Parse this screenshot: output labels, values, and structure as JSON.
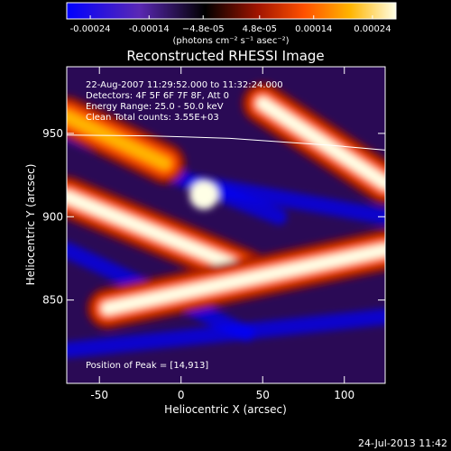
{
  "chart_data": {
    "type": "heatmap",
    "title": "Reconstructed RHESSI Image",
    "xlabel": "Heliocentric X (arcsec)",
    "ylabel": "Heliocentric Y (arcsec)",
    "xlim": [
      -70,
      125
    ],
    "ylim": [
      800,
      990
    ],
    "x_ticks": [
      -50,
      0,
      50,
      100
    ],
    "y_ticks": [
      850,
      900,
      950
    ],
    "colorbar": {
      "range": [
        -0.00028,
        0.00028
      ],
      "tick_values": [
        -0.00024,
        -0.00014,
        -4.8e-05,
        4.8e-05,
        0.00014,
        0.00024
      ],
      "tick_labels": [
        "-0.00024",
        "-0.00014",
        "−4.8e-05",
        "4.8e-05",
        "0.00014",
        "0.00024"
      ],
      "unit_label": "(photons cm⁻² s⁻¹ asec⁻²)",
      "colormap": [
        "#0000ff",
        "#5a28b4",
        "#000000",
        "#a01400",
        "#ff5000",
        "#ffb400",
        "#ffffe6"
      ]
    },
    "annotations": [
      "22-Aug-2007 11:29:52.000 to 11:32:24.000",
      "Detectors: 4F 5F 6F 7F 8F, Att 0",
      "Energy Range: 25.0 - 50.0 keV",
      "Clean     Total counts: 3.55E+03"
    ],
    "peak_label": "Position of Peak = [14,913]",
    "peak": [
      14,
      913
    ],
    "bright_bands": [
      {
        "x": [
          -70,
          40
        ],
        "y_at_x": [
          912,
          868
        ],
        "intensity": 0.00022
      },
      {
        "x": [
          -45,
          125
        ],
        "y_at_x": [
          845,
          880
        ],
        "intensity": 0.00019
      },
      {
        "x": [
          50,
          125
        ],
        "y_at_x": [
          968,
          920
        ],
        "intensity": 0.0002
      },
      {
        "x": [
          -70,
          -10
        ],
        "y_at_x": [
          960,
          932
        ],
        "intensity": 0.00012
      }
    ],
    "limb_curve": {
      "x": [
        -70,
        -20,
        0,
        30,
        60,
        90,
        125
      ],
      "y": [
        949,
        948.5,
        948,
        947,
        945,
        943,
        940
      ]
    }
  },
  "footer": {
    "timestamp": "24-Jul-2013 11:42"
  }
}
